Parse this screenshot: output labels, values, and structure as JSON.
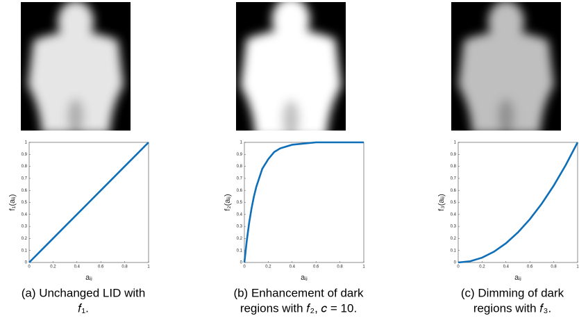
{
  "chart_data": [
    {
      "type": "line",
      "x_label": "aᵢⱼ",
      "y_label": "f₁(aᵢⱼ)",
      "x": [
        0,
        0.1,
        0.2,
        0.3,
        0.4,
        0.5,
        0.6,
        0.7,
        0.8,
        0.9,
        1
      ],
      "series": [
        {
          "color": "#0e6eb8",
          "values": [
            0,
            0.1,
            0.2,
            0.3,
            0.4,
            0.5,
            0.6,
            0.7,
            0.8,
            0.9,
            1
          ]
        }
      ],
      "xlim": [
        0,
        1
      ],
      "ylim": [
        0,
        1
      ],
      "xticks": [
        0,
        0.2,
        0.4,
        0.6,
        0.8,
        1
      ],
      "yticks": [
        0,
        0.1,
        0.2,
        0.3,
        0.4,
        0.5,
        0.6,
        0.7,
        0.8,
        0.9,
        1
      ],
      "caption": [
        "(a) Unchanged LID with",
        "𝑓₁."
      ]
    },
    {
      "type": "line",
      "x_label": "aᵢⱼ",
      "y_label": "f₂(aᵢⱼ)",
      "x": [
        0,
        0.02,
        0.04,
        0.06,
        0.08,
        0.1,
        0.15,
        0.2,
        0.25,
        0.3,
        0.4,
        0.5,
        0.6,
        0.8,
        1
      ],
      "series": [
        {
          "color": "#0e6eb8",
          "values": [
            0,
            0.18,
            0.33,
            0.45,
            0.55,
            0.63,
            0.78,
            0.86,
            0.92,
            0.95,
            0.98,
            0.99,
            1,
            1,
            1
          ]
        }
      ],
      "xlim": [
        0,
        1
      ],
      "ylim": [
        0,
        1
      ],
      "xticks": [
        0,
        0.2,
        0.4,
        0.6,
        0.8,
        1
      ],
      "yticks": [
        0,
        0.1,
        0.2,
        0.3,
        0.4,
        0.5,
        0.6,
        0.7,
        0.8,
        0.9,
        1
      ],
      "caption": [
        "(b) Enhancement of dark",
        "regions with 𝑓₂, 𝑐 = 10."
      ]
    },
    {
      "type": "line",
      "x_label": "aᵢⱼ",
      "y_label": "f₃(aᵢⱼ)",
      "x": [
        0,
        0.1,
        0.2,
        0.3,
        0.4,
        0.5,
        0.6,
        0.7,
        0.8,
        0.9,
        1
      ],
      "series": [
        {
          "color": "#0e6eb8",
          "values": [
            0,
            0.01,
            0.04,
            0.09,
            0.16,
            0.25,
            0.36,
            0.49,
            0.64,
            0.81,
            1
          ]
        }
      ],
      "xlim": [
        0,
        1
      ],
      "ylim": [
        0,
        1
      ],
      "xticks": [
        0,
        0.2,
        0.4,
        0.6,
        0.8,
        1
      ],
      "yticks": [
        0,
        0.1,
        0.2,
        0.3,
        0.4,
        0.5,
        0.6,
        0.7,
        0.8,
        0.9,
        1
      ],
      "caption": [
        "(c) Dimming of dark",
        "regions with 𝑓₃."
      ]
    }
  ]
}
